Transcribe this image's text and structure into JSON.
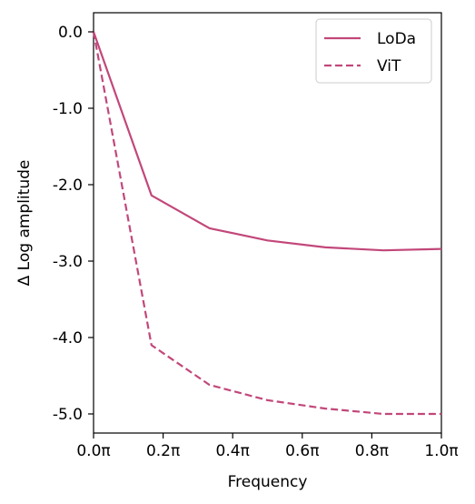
{
  "chart_data": {
    "type": "line",
    "xlabel": "Frequency",
    "ylabel": "Δ Log amplitude",
    "xlim": [
      0,
      1.0
    ],
    "ylim": [
      -5.25,
      0.25
    ],
    "x_ticks": [
      {
        "value": 0.0,
        "label": "0.0π"
      },
      {
        "value": 0.2,
        "label": "0.2π"
      },
      {
        "value": 0.4,
        "label": "0.4π"
      },
      {
        "value": 0.6,
        "label": "0.6π"
      },
      {
        "value": 0.8,
        "label": "0.8π"
      },
      {
        "value": 1.0,
        "label": "1.0π"
      }
    ],
    "y_ticks": [
      {
        "value": 0.0,
        "label": "0.0"
      },
      {
        "value": -1.0,
        "label": "-1.0"
      },
      {
        "value": -2.0,
        "label": "-2.0"
      },
      {
        "value": -3.0,
        "label": "-3.0"
      },
      {
        "value": -4.0,
        "label": "-4.0"
      },
      {
        "value": -5.0,
        "label": "-5.0"
      }
    ],
    "x": [
      0.0,
      0.1667,
      0.3333,
      0.5,
      0.6667,
      0.8333,
      1.0
    ],
    "series": [
      {
        "name": "LoDa",
        "values": [
          0.0,
          -2.14,
          -2.57,
          -2.73,
          -2.82,
          -2.86,
          -2.84
        ],
        "color": "#c2477a",
        "dash": "solid"
      },
      {
        "name": "ViT",
        "values": [
          0.0,
          -4.1,
          -4.62,
          -4.82,
          -4.93,
          -5.0,
          -5.0
        ],
        "color": "#c2477a",
        "dash": "dashed"
      }
    ],
    "grid": false,
    "legend": "top-right"
  }
}
